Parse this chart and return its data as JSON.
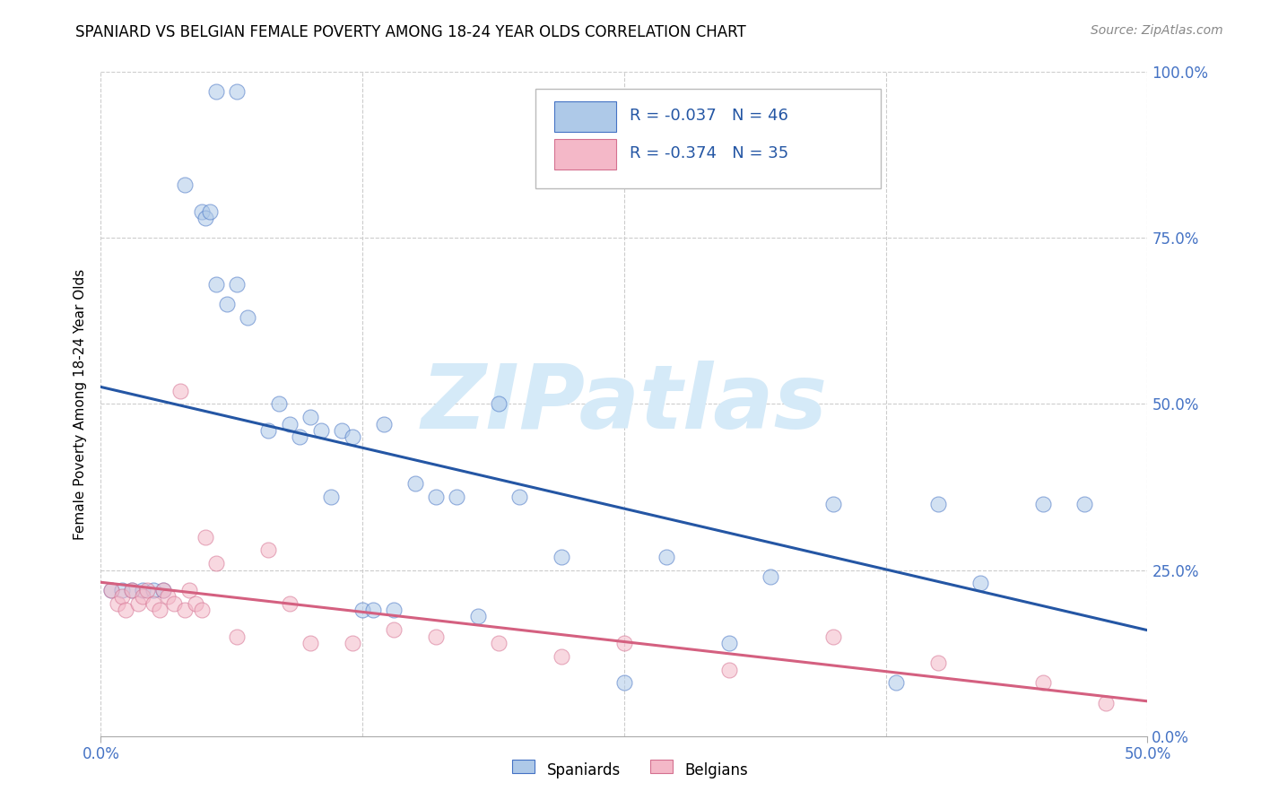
{
  "title": "SPANIARD VS BELGIAN FEMALE POVERTY AMONG 18-24 YEAR OLDS CORRELATION CHART",
  "source": "Source: ZipAtlas.com",
  "ylabel": "Female Poverty Among 18-24 Year Olds",
  "xlim": [
    0,
    0.5
  ],
  "ylim": [
    0,
    1.0
  ],
  "xtick_positions": [
    0.0,
    0.5
  ],
  "xtick_labels": [
    "0.0%",
    "50.0%"
  ],
  "ytick_positions": [
    0.0,
    0.25,
    0.5,
    0.75,
    1.0
  ],
  "ytick_labels": [
    "0.0%",
    "25.0%",
    "50.0%",
    "75.0%",
    "100.0%"
  ],
  "grid_yticks": [
    0.25,
    0.5,
    0.75,
    1.0
  ],
  "grid_xticks": [
    0.0,
    0.125,
    0.25,
    0.375,
    0.5
  ],
  "spaniards_x": [
    0.055,
    0.065,
    0.04,
    0.048,
    0.05,
    0.052,
    0.055,
    0.06,
    0.065,
    0.07,
    0.08,
    0.085,
    0.09,
    0.095,
    0.1,
    0.105,
    0.11,
    0.115,
    0.12,
    0.125,
    0.13,
    0.135,
    0.14,
    0.15,
    0.16,
    0.17,
    0.18,
    0.19,
    0.2,
    0.22,
    0.25,
    0.27,
    0.3,
    0.32,
    0.35,
    0.38,
    0.4,
    0.42,
    0.45,
    0.47,
    0.005,
    0.01,
    0.015,
    0.02,
    0.025,
    0.03
  ],
  "spaniards_y": [
    0.97,
    0.97,
    0.83,
    0.79,
    0.78,
    0.79,
    0.68,
    0.65,
    0.68,
    0.63,
    0.46,
    0.5,
    0.47,
    0.45,
    0.48,
    0.46,
    0.36,
    0.46,
    0.45,
    0.19,
    0.19,
    0.47,
    0.19,
    0.38,
    0.36,
    0.36,
    0.18,
    0.5,
    0.36,
    0.27,
    0.08,
    0.27,
    0.14,
    0.24,
    0.35,
    0.08,
    0.35,
    0.23,
    0.35,
    0.35,
    0.22,
    0.22,
    0.22,
    0.22,
    0.22,
    0.22
  ],
  "belgians_x": [
    0.005,
    0.008,
    0.01,
    0.012,
    0.015,
    0.018,
    0.02,
    0.022,
    0.025,
    0.028,
    0.03,
    0.032,
    0.035,
    0.038,
    0.04,
    0.042,
    0.045,
    0.048,
    0.05,
    0.055,
    0.065,
    0.08,
    0.09,
    0.1,
    0.12,
    0.14,
    0.16,
    0.19,
    0.22,
    0.25,
    0.3,
    0.35,
    0.4,
    0.45,
    0.48
  ],
  "belgians_y": [
    0.22,
    0.2,
    0.21,
    0.19,
    0.22,
    0.2,
    0.21,
    0.22,
    0.2,
    0.19,
    0.22,
    0.21,
    0.2,
    0.52,
    0.19,
    0.22,
    0.2,
    0.19,
    0.3,
    0.26,
    0.15,
    0.28,
    0.2,
    0.14,
    0.14,
    0.16,
    0.15,
    0.14,
    0.12,
    0.14,
    0.1,
    0.15,
    0.11,
    0.08,
    0.05
  ],
  "r_spaniards": -0.037,
  "n_spaniards": 46,
  "r_belgians": -0.374,
  "n_belgians": 35,
  "color_spaniards_fill": "#aec9e8",
  "color_spaniards_edge": "#4472c4",
  "color_belgians_fill": "#f4b8c8",
  "color_belgians_edge": "#d47090",
  "color_line_spaniards": "#2456a4",
  "color_line_belgians": "#d46080",
  "color_tick_labels": "#4472c4",
  "background_color": "#ffffff",
  "marker_size": 150,
  "marker_alpha": 0.55,
  "watermark_text": "ZIPatlas",
  "watermark_color": "#d5eaf8",
  "watermark_fontsize": 72,
  "legend_label_spaniards": "Spaniards",
  "legend_label_belgians": "Belgians"
}
